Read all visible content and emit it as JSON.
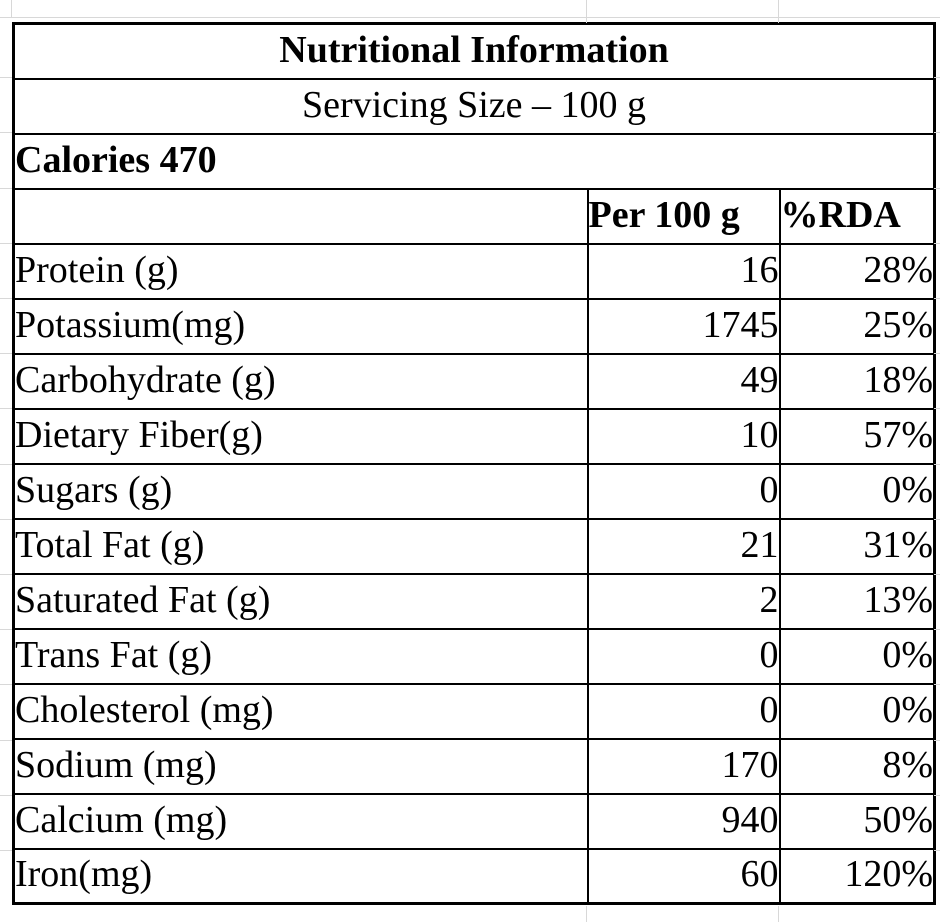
{
  "chart_data": {
    "type": "table",
    "title": "Nutritional Information",
    "subtitle": "Servicing Size – 100 g",
    "calories_line": "Calories 470",
    "columns": {
      "label": "",
      "per100g": "Per 100 g",
      "rda": "%RDA"
    },
    "rows": [
      {
        "label": "Protein (g)",
        "value": "16",
        "rda": "28%"
      },
      {
        "label": "Potassium(mg)",
        "value": "1745",
        "rda": "25%"
      },
      {
        "label": "Carbohydrate (g)",
        "value": "49",
        "rda": "18%"
      },
      {
        "label": "Dietary Fiber(g)",
        "value": "10",
        "rda": "57%"
      },
      {
        "label": "Sugars (g)",
        "value": "0",
        "rda": "0%"
      },
      {
        "label": "Total Fat (g)",
        "value": "21",
        "rda": "31%"
      },
      {
        "label": "Saturated Fat (g)",
        "value": "2",
        "rda": "13%"
      },
      {
        "label": "Trans Fat (g)",
        "value": "0",
        "rda": "0%"
      },
      {
        "label": "Cholesterol (mg)",
        "value": "0",
        "rda": "0%"
      },
      {
        "label": "Sodium (mg)",
        "value": "170",
        "rda": "8%"
      },
      {
        "label": "Calcium (mg)",
        "value": "940",
        "rda": "50%"
      },
      {
        "label": "Iron(mg)",
        "value": "60",
        "rda": "120%"
      }
    ],
    "layout_hints": {
      "grid": "faint spreadsheet gridlines visible outside table",
      "title_align": "center",
      "values_align": "right"
    }
  },
  "colors": {
    "text": "#000000",
    "table_border": "#000000",
    "gridline": "#d8d8d8",
    "background": "#ffffff"
  }
}
